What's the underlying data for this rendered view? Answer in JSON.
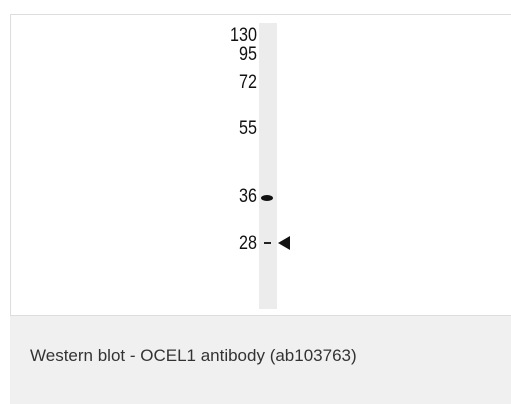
{
  "figure": {
    "markers": [
      "130",
      "95",
      "72",
      "55",
      "36",
      "28"
    ]
  },
  "caption": "Western blot - OCEL1 antibody (ab103763)"
}
